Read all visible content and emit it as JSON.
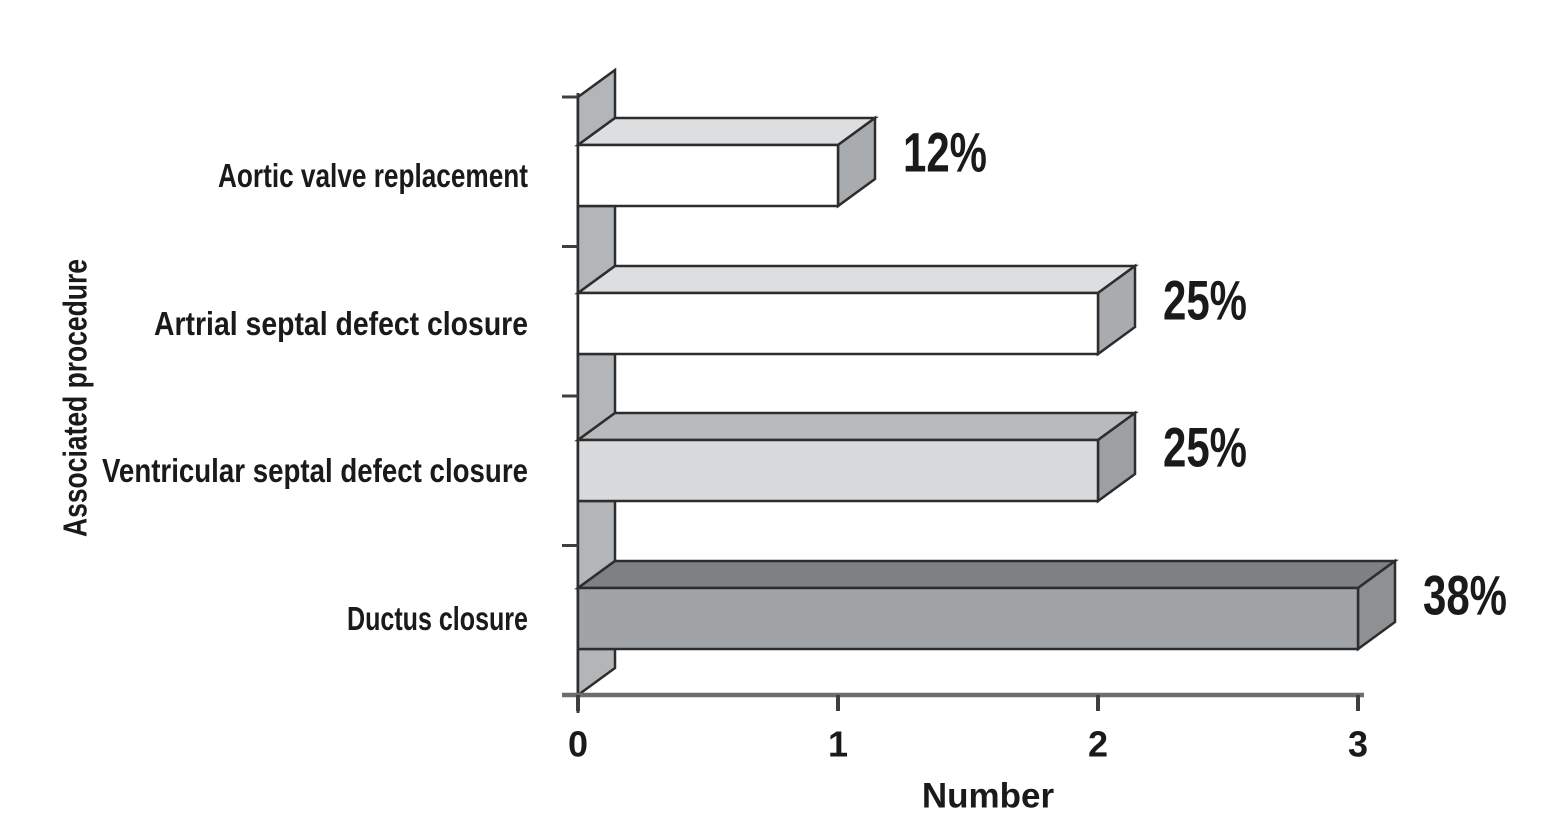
{
  "chart_data": {
    "type": "bar",
    "orientation": "horizontal",
    "style": "3d-prism",
    "title": "",
    "xlabel": "Number",
    "ylabel": "Associated procedure",
    "xlim": [
      0,
      3
    ],
    "x_ticks": [
      "0",
      "1",
      "2",
      "3"
    ],
    "grid": false,
    "legend": false,
    "categories": [
      "Aortic valve replacement",
      "Artrial septal defect closure",
      "Ventricular septal defect closure",
      "Ductus closure"
    ],
    "values": [
      1,
      2,
      2,
      3
    ],
    "data_labels": [
      "12%",
      "25%",
      "25%",
      "38%"
    ],
    "bar_colors": [
      {
        "front": "#ffffff",
        "top": "#dcdee0",
        "side": "#a9acae"
      },
      {
        "front": "#ffffff",
        "top": "#dcdee0",
        "side": "#a9acae"
      },
      {
        "front": "#d9dadb",
        "top": "#b8bbbd",
        "side": "#9da0a2"
      },
      {
        "front": "#a1a4a6",
        "top": "#7e8183",
        "side": "#8e9193"
      }
    ],
    "wall_color": "#b3b6b9",
    "outline_color": "#2d2d2d",
    "axis_line_color": "#6a6d70",
    "tick_color": "#3f3f3f",
    "text_color": "#1a1a1a"
  }
}
